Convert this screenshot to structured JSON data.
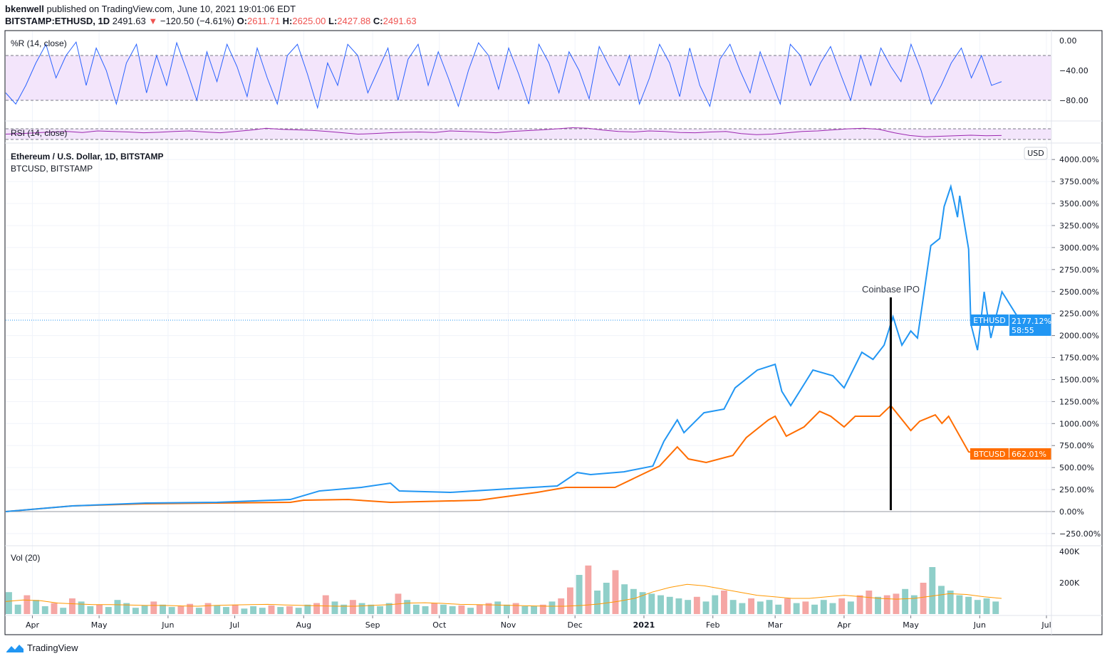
{
  "header": {
    "author": "bkenwell",
    "published": "published on TradingView.com, June 10, 2021 19:01:06 EDT",
    "symbol": "BITSTAMP:ETHUSD, 1D",
    "last": "2491.63",
    "change": "−120.50 (−4.61%)",
    "o_label": "O:",
    "o": "2611.71",
    "h_label": "H:",
    "h": "2625.00",
    "l_label": "L:",
    "l": "2427.88",
    "c_label": "C:",
    "c": "2491.63"
  },
  "footer": {
    "brand": "TradingView"
  },
  "chart_data": [
    {
      "type": "line",
      "title": "%R (14, close)",
      "yticks": [
        "0.00",
        "−40.00",
        "−80.00"
      ],
      "ytick_values": [
        0,
        -40,
        -80
      ],
      "band": [
        -20,
        -80
      ],
      "color": "#2962ff",
      "values": [
        -70,
        -85,
        -60,
        -30,
        -5,
        -50,
        -20,
        -2,
        -60,
        -10,
        -40,
        -85,
        -30,
        -5,
        -70,
        -20,
        -60,
        -3,
        -40,
        -80,
        -15,
        -55,
        -5,
        -35,
        -75,
        -10,
        -50,
        -85,
        -20,
        -5,
        -45,
        -90,
        -30,
        -60,
        -5,
        -20,
        -70,
        -40,
        -10,
        -80,
        -25,
        -5,
        -60,
        -15,
        -50,
        -88,
        -40,
        -3,
        -20,
        -65,
        -10,
        -45,
        -85,
        -5,
        -30,
        -70,
        -15,
        -40,
        -78,
        -8,
        -35,
        -60,
        -20,
        -85,
        -50,
        -5,
        -30,
        -75,
        -10,
        -60,
        -88,
        -25,
        -5,
        -40,
        -70,
        -15,
        -50,
        -85,
        -5,
        -20,
        -60,
        -30,
        -8,
        -45,
        -80,
        -20,
        -60,
        -10,
        -35,
        -55,
        -5,
        -40,
        -85,
        -60,
        -30,
        -10,
        -50,
        -20,
        -60,
        -55
      ],
      "xlabels_shared": true
    },
    {
      "type": "line",
      "title": "RSI (14, close)",
      "color": "#9c27b0",
      "band": [
        70,
        30
      ],
      "values": [
        50,
        52,
        55,
        58,
        60,
        56,
        62,
        60,
        58,
        55,
        57,
        60,
        62,
        58,
        55,
        60,
        65,
        72,
        68,
        66,
        64,
        60,
        55,
        50,
        52,
        55,
        57,
        58,
        56,
        62,
        60,
        58,
        55,
        60,
        63,
        66,
        70,
        74,
        72,
        65,
        60,
        58,
        62,
        60,
        56,
        55,
        58,
        60,
        52,
        48,
        50,
        55,
        60,
        62,
        66,
        70,
        72,
        68,
        55,
        45,
        40,
        42,
        44,
        46,
        44,
        45
      ]
    },
    {
      "type": "line",
      "title": "Ethereum / U.S. Dollar, 1D, BITSTAMP",
      "compare_series_label": "BTCUSD, BITSTAMP",
      "ylabel": "USD",
      "y_unit": "%",
      "yticks": [
        "4000.00%",
        "3750.00%",
        "3500.00%",
        "3250.00%",
        "3000.00%",
        "2750.00%",
        "2500.00%",
        "2250.00%",
        "2000.00%",
        "1750.00%",
        "1500.00%",
        "1250.00%",
        "1000.00%",
        "750.00%",
        "500.00%",
        "250.00%",
        "0.00%",
        "−250.00%"
      ],
      "ytick_values": [
        4000,
        3750,
        3500,
        3250,
        3000,
        2750,
        2500,
        2250,
        2000,
        1750,
        1500,
        1250,
        1000,
        750,
        500,
        250,
        0,
        -250
      ],
      "ylim": [
        -380,
        4050
      ],
      "x_unit": "days since 2020-03-20",
      "xlabels": [
        "Apr",
        "May",
        "Jun",
        "Jul",
        "Aug",
        "Sep",
        "Oct",
        "Nov",
        "Dec",
        "2021",
        "Feb",
        "Mar",
        "Apr",
        "May",
        "Jun",
        "Jul"
      ],
      "xlabel_days": [
        12,
        42,
        73,
        103,
        134,
        165,
        195,
        226,
        256,
        287,
        318,
        346,
        377,
        407,
        438,
        468
      ],
      "annotation": {
        "text": "Coinbase IPO",
        "day": 398
      },
      "series": [
        {
          "name": "ETHUSD",
          "color": "#2196f3",
          "last_label": "2177.12%",
          "countdown": "58:55",
          "x": [
            0,
            30,
            63,
            95,
            128,
            141,
            160,
            173,
            177,
            200,
            226,
            248,
            257,
            263,
            278,
            291,
            296,
            302,
            305,
            314,
            323,
            328,
            338,
            346,
            349,
            353,
            359,
            363,
            372,
            377,
            385,
            390,
            395,
            399,
            403,
            407,
            410,
            413,
            416,
            420,
            422,
            425,
            428,
            429,
            433,
            434,
            437,
            440,
            443,
            448,
            454,
            456
          ],
          "values": [
            0,
            65,
            97,
            105,
            137,
            234,
            275,
            323,
            234,
            218,
            259,
            291,
            444,
            420,
            452,
            517,
            800,
            1042,
            897,
            1123,
            1164,
            1406,
            1608,
            1673,
            1366,
            1204,
            1446,
            1608,
            1543,
            1406,
            1810,
            1729,
            1891,
            2214,
            1891,
            2052,
            1972,
            2497,
            3022,
            3103,
            3466,
            3693,
            3345,
            3588,
            2982,
            2133,
            1834,
            2497,
            1972,
            2497,
            2254,
            2177
          ]
        },
        {
          "name": "BTCUSD",
          "color": "#ff6d00",
          "last_label": "662.01%",
          "x": [
            0,
            30,
            63,
            128,
            134,
            154,
            173,
            213,
            239,
            252,
            274,
            284,
            294,
            302,
            307,
            315,
            327,
            333,
            343,
            346,
            351,
            359,
            366,
            371,
            377,
            382,
            393,
            398,
            407,
            411,
            418,
            421,
            424,
            433,
            441,
            453,
            456
          ],
          "values": [
            0,
            65,
            89,
            105,
            129,
            137,
            105,
            129,
            218,
            275,
            275,
            396,
            517,
            735,
            598,
            558,
            638,
            840,
            1042,
            1083,
            857,
            962,
            1139,
            1083,
            962,
            1083,
            1083,
            1204,
            921,
            1026,
            1099,
            1002,
            1083,
            679,
            638,
            598,
            662
          ]
        }
      ]
    },
    {
      "type": "bar",
      "title": "Vol (20)",
      "yticks": [
        "400K",
        "200K"
      ],
      "ytick_values": [
        400,
        200
      ],
      "unit": "K",
      "up_color": "#26a69a",
      "down_color": "#ef5350",
      "values": [
        140,
        60,
        120,
        90,
        50,
        70,
        40,
        100,
        80,
        50,
        60,
        45,
        90,
        70,
        40,
        55,
        80,
        60,
        45,
        50,
        65,
        40,
        70,
        55,
        45,
        60,
        35,
        50,
        40,
        55,
        45,
        50,
        40,
        60,
        70,
        120,
        80,
        60,
        90,
        70,
        60,
        50,
        70,
        130,
        90,
        60,
        50,
        70,
        60,
        50,
        55,
        40,
        60,
        70,
        80,
        60,
        70,
        50,
        50,
        60,
        80,
        100,
        170,
        250,
        310,
        150,
        200,
        280,
        190,
        160,
        140,
        130,
        120,
        110,
        100,
        90,
        110,
        80,
        120,
        150,
        90,
        70,
        100,
        80,
        90,
        60,
        100,
        70,
        80,
        60,
        90,
        70,
        100,
        80,
        120,
        150,
        110,
        120,
        130,
        160,
        120,
        200,
        300,
        180,
        150,
        120,
        110,
        90,
        100,
        80
      ],
      "ma_values": [
        80,
        90,
        85,
        70,
        65,
        60,
        60,
        58,
        55,
        55,
        52,
        50,
        55,
        58,
        60,
        62,
        58,
        55,
        52,
        50,
        50,
        55,
        60,
        70,
        72,
        68,
        62,
        60,
        58,
        55,
        52,
        50,
        50,
        55,
        65,
        80,
        100,
        140,
        170,
        190,
        180,
        160,
        140,
        120,
        110,
        100,
        100,
        110,
        120,
        110,
        100,
        95,
        100,
        115,
        130,
        125,
        110,
        100
      ]
    }
  ]
}
